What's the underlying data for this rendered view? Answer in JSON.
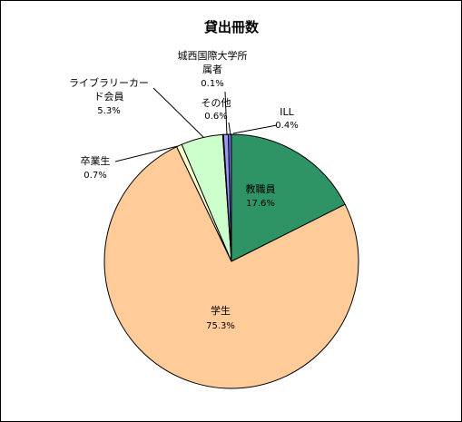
{
  "chart_data": {
    "type": "pie",
    "title": "貸出冊数",
    "slices": [
      {
        "label": "教職員",
        "value": 17.6,
        "value_text": "17.6%",
        "color": "#2e9466"
      },
      {
        "label": "学生",
        "value": 75.3,
        "value_text": "75.3%",
        "color": "#ffcc99"
      },
      {
        "label": "卒業生",
        "value": 0.7,
        "value_text": "0.7%",
        "color": "#ffffcc"
      },
      {
        "label": "ライブラリーカード会員",
        "value": 5.3,
        "value_text": "5.3%",
        "color": "#ccffcc"
      },
      {
        "label": "城西国際大学所属者",
        "value": 0.1,
        "value_text": "0.1%",
        "color": "#c0c0c0"
      },
      {
        "label": "その他",
        "value": 0.6,
        "value_text": "0.6%",
        "color": "#9999ff"
      },
      {
        "label": "ILL",
        "value": 0.4,
        "value_text": "0.4%",
        "color": "#6666cc"
      }
    ]
  }
}
